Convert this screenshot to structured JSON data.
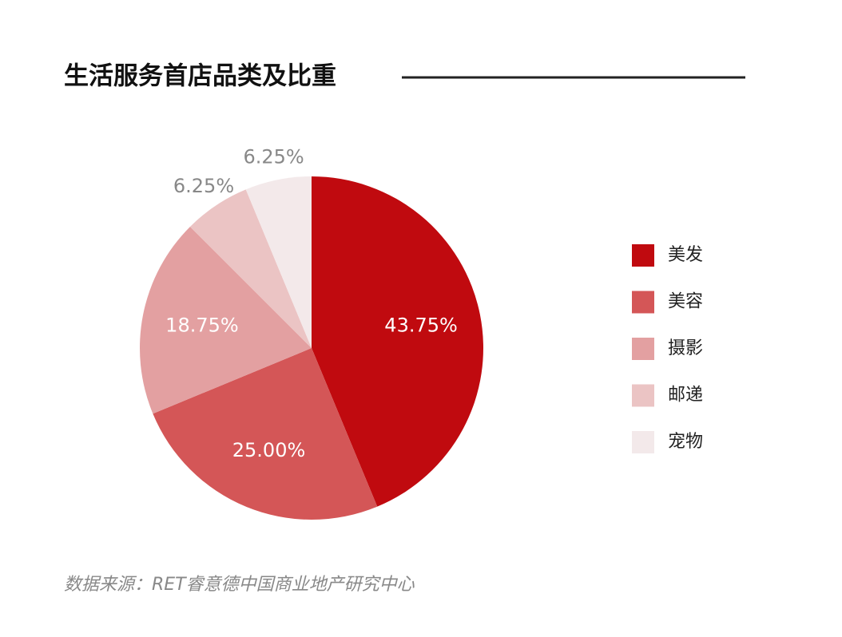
{
  "chart_data": {
    "type": "pie",
    "title": "生活服务首店品类及比重",
    "categories": [
      "美发",
      "美容",
      "摄影",
      "邮递",
      "宠物"
    ],
    "values": [
      43.75,
      25.0,
      18.75,
      6.25,
      6.25
    ],
    "value_labels": [
      "43.75%",
      "25.00%",
      "18.75%",
      "6.25%",
      "6.25%"
    ],
    "colors": [
      "#c00a0f",
      "#d45657",
      "#e3a0a1",
      "#ebc4c4",
      "#f3e9ea"
    ],
    "source": "数据来源：RET睿意德中国商业地产研究中心",
    "legend": "right"
  }
}
